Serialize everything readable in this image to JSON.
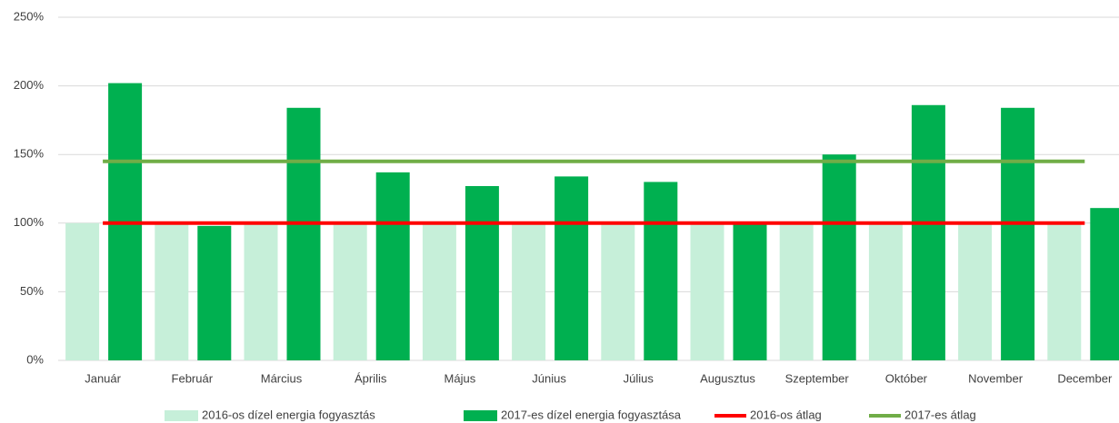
{
  "chart_data": {
    "type": "bar",
    "categories": [
      "Január",
      "Február",
      "Március",
      "Április",
      "Május",
      "Június",
      "Július",
      "Augusztus",
      "Szeptember",
      "Október",
      "November",
      "December"
    ],
    "series": [
      {
        "name": "2016-os dízel energia fogyasztás",
        "color": "#c6efd9",
        "type": "bar",
        "values": [
          100,
          100,
          100,
          100,
          100,
          100,
          100,
          100,
          100,
          100,
          100,
          100
        ]
      },
      {
        "name": "2017-es dízel energia fogyasztása",
        "color": "#00b050",
        "type": "bar",
        "values": [
          202,
          98,
          184,
          137,
          127,
          134,
          130,
          100,
          150,
          186,
          184,
          111
        ]
      },
      {
        "name": "2016-os átlag",
        "color": "#ff0000",
        "type": "line",
        "values": [
          100,
          100,
          100,
          100,
          100,
          100,
          100,
          100,
          100,
          100,
          100,
          100
        ]
      },
      {
        "name": "2017-es átlag",
        "color": "#70ad47",
        "type": "line",
        "values": [
          145,
          145,
          145,
          145,
          145,
          145,
          145,
          145,
          145,
          145,
          145,
          145
        ]
      }
    ],
    "ylim": [
      0,
      250
    ],
    "yticks": [
      {
        "value": 0,
        "label": "0%"
      },
      {
        "value": 50,
        "label": "50%"
      },
      {
        "value": 100,
        "label": "100%"
      },
      {
        "value": 150,
        "label": "150%"
      },
      {
        "value": 200,
        "label": "200%"
      },
      {
        "value": 250,
        "label": "250%"
      }
    ],
    "grid": true,
    "legend": "bottom"
  }
}
